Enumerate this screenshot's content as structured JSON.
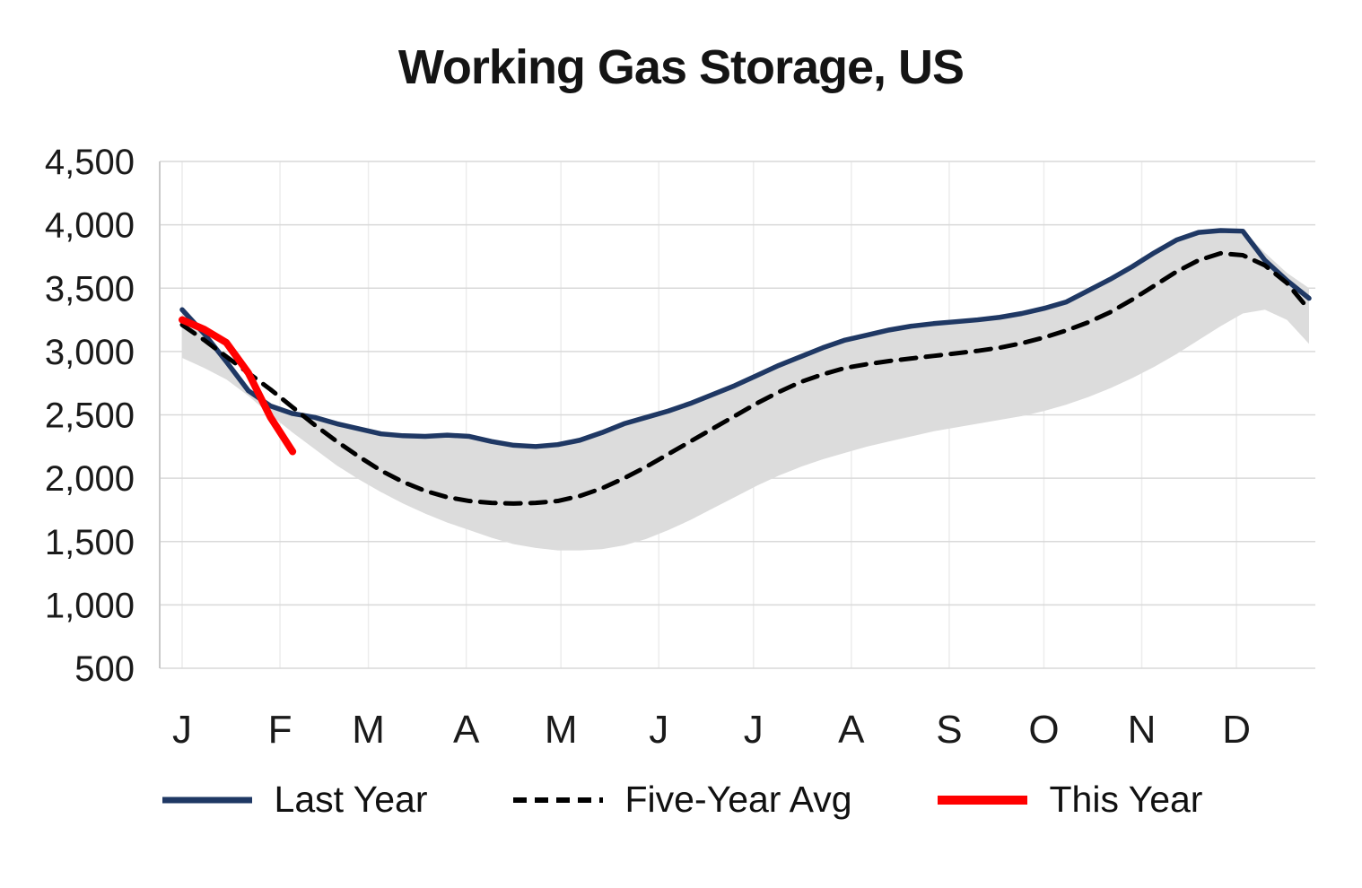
{
  "chart_data": {
    "type": "line",
    "title": "Working Gas Storage, US",
    "xlabel": "",
    "ylabel": "",
    "x_unit": "weeks (weekly data, Jan through late Dec)",
    "ylim": [
      500,
      4500
    ],
    "y_ticks": [
      500,
      1000,
      1500,
      2000,
      2500,
      3000,
      3500,
      4000,
      4500
    ],
    "y_tick_labels": [
      "500",
      "1,000",
      "1,500",
      "2,000",
      "2,500",
      "3,000",
      "3,500",
      "4,000",
      "4,500"
    ],
    "x_tick_labels": [
      "J",
      "F",
      "M",
      "A",
      "M",
      "J",
      "J",
      "A",
      "S",
      "O",
      "N",
      "D"
    ],
    "x_tick_days": [
      0,
      31,
      59,
      90,
      120,
      151,
      181,
      212,
      243,
      273,
      304,
      334
    ],
    "grid_color": "#d9d9d9",
    "vgrid_color": "#ececec",
    "axis_color": "#c9c9c9",
    "legend_position": "bottom",
    "band": {
      "name": "five-year-range",
      "color": "#dcdcdc",
      "upper": [
        3340,
        3150,
        2930,
        2700,
        2580,
        2520,
        2490,
        2440,
        2400,
        2360,
        2345,
        2340,
        2350,
        2340,
        2300,
        2270,
        2260,
        2275,
        2310,
        2370,
        2440,
        2490,
        2540,
        2600,
        2670,
        2740,
        2820,
        2900,
        2970,
        3040,
        3100,
        3140,
        3180,
        3210,
        3230,
        3245,
        3260,
        3280,
        3310,
        3350,
        3400,
        3490,
        3580,
        3680,
        3790,
        3890,
        3950,
        3960,
        3955,
        3780,
        3620,
        3500
      ],
      "lower": [
        2950,
        2870,
        2780,
        2650,
        2500,
        2360,
        2230,
        2100,
        1990,
        1890,
        1800,
        1720,
        1650,
        1590,
        1530,
        1480,
        1450,
        1430,
        1430,
        1440,
        1470,
        1520,
        1590,
        1670,
        1760,
        1850,
        1940,
        2020,
        2090,
        2150,
        2200,
        2250,
        2290,
        2330,
        2370,
        2400,
        2430,
        2460,
        2490,
        2530,
        2580,
        2640,
        2710,
        2790,
        2880,
        2980,
        3090,
        3200,
        3300,
        3330,
        3250,
        3060
      ]
    },
    "series": [
      {
        "name": "Last Year",
        "color": "#1f3864",
        "style": "solid",
        "width": 5.5,
        "values": [
          3330,
          3140,
          2920,
          2690,
          2570,
          2510,
          2480,
          2430,
          2390,
          2350,
          2335,
          2330,
          2340,
          2330,
          2290,
          2260,
          2250,
          2265,
          2300,
          2360,
          2430,
          2480,
          2530,
          2590,
          2660,
          2730,
          2810,
          2890,
          2960,
          3030,
          3090,
          3130,
          3170,
          3200,
          3220,
          3235,
          3250,
          3270,
          3300,
          3340,
          3390,
          3480,
          3570,
          3670,
          3780,
          3880,
          3940,
          3955,
          3950,
          3720,
          3560,
          3420
        ]
      },
      {
        "name": "Five-Year Avg",
        "color": "#000000",
        "style": "dashed",
        "width": 5,
        "values": [
          3210,
          3090,
          2960,
          2830,
          2700,
          2560,
          2420,
          2290,
          2170,
          2060,
          1970,
          1900,
          1850,
          1820,
          1805,
          1800,
          1805,
          1820,
          1860,
          1920,
          2000,
          2090,
          2190,
          2290,
          2390,
          2490,
          2590,
          2680,
          2760,
          2820,
          2870,
          2900,
          2925,
          2945,
          2965,
          2985,
          3005,
          3030,
          3065,
          3110,
          3165,
          3230,
          3310,
          3410,
          3520,
          3630,
          3720,
          3775,
          3760,
          3680,
          3540,
          3330
        ]
      },
      {
        "name": "This Year",
        "color": "#ff0000",
        "style": "solid",
        "width": 8,
        "values": [
          3250,
          3175,
          3070,
          2830,
          2480,
          2210
        ]
      }
    ]
  }
}
